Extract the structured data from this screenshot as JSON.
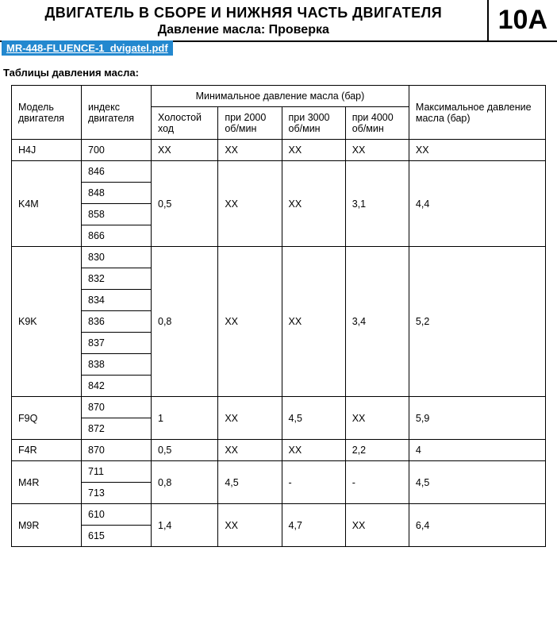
{
  "header": {
    "title": "ДВИГАТЕЛЬ В СБОРЕ И НИЖНЯЯ ЧАСТЬ ДВИГАТЕЛЯ",
    "subtitle": "Давление масла: Проверка",
    "section_code": "10A"
  },
  "pdf_link": "MR-448-FLUENCE-1_dvigatel.pdf",
  "caption": "Таблицы давления масла:",
  "columns": {
    "model": "Модель двигателя",
    "index": "индекс двигателя",
    "min_group": "Минимальное давление масла (бар)",
    "idle": "Холостой ход",
    "rpm2000": "при 2000 об/мин",
    "rpm3000": "при 3000 об/мин",
    "rpm4000": "при 4000 об/мин",
    "max": "Максимальное давление масла (бар)"
  },
  "groups": [
    {
      "model": "H4J",
      "indices": [
        "700"
      ],
      "idle": "XX",
      "rpm2000": "XX",
      "rpm3000": "XX",
      "rpm4000": "XX",
      "max": "XX"
    },
    {
      "model": "K4M",
      "indices": [
        "846",
        "848",
        "858",
        "866"
      ],
      "idle": "0,5",
      "rpm2000": "XX",
      "rpm3000": "XX",
      "rpm4000": "3,1",
      "max": "4,4"
    },
    {
      "model": "K9K",
      "indices": [
        "830",
        "832",
        "834",
        "836",
        "837",
        "838",
        "842"
      ],
      "idle": "0,8",
      "rpm2000": "XX",
      "rpm3000": "XX",
      "rpm4000": "3,4",
      "max": "5,2"
    },
    {
      "model": "F9Q",
      "indices": [
        "870",
        "872"
      ],
      "idle": "1",
      "rpm2000": "XX",
      "rpm3000": "4,5",
      "rpm4000": "XX",
      "max": "5,9"
    },
    {
      "model": "F4R",
      "indices": [
        "870"
      ],
      "idle": "0,5",
      "rpm2000": "XX",
      "rpm3000": "XX",
      "rpm4000": "2,2",
      "max": "4"
    },
    {
      "model": "M4R",
      "indices": [
        "711",
        "713"
      ],
      "idle": "0,8",
      "rpm2000": "4,5",
      "rpm3000": "-",
      "rpm4000": "-",
      "max": "4,5"
    },
    {
      "model": "M9R",
      "indices": [
        "610",
        "615"
      ],
      "idle": "1,4",
      "rpm2000": "XX",
      "rpm3000": "4,7",
      "rpm4000": "XX",
      "max": "6,4"
    }
  ],
  "colors": {
    "link_bg": "#2388cf",
    "link_fg": "#ffffff",
    "border": "#000000",
    "bg": "#ffffff"
  }
}
